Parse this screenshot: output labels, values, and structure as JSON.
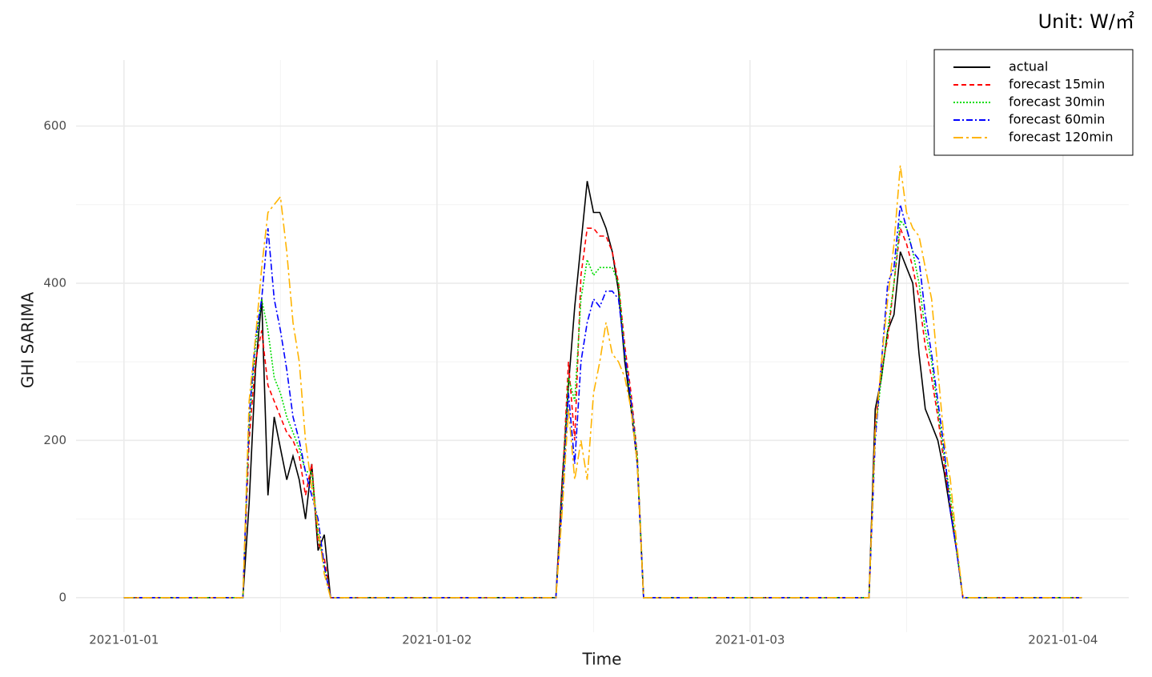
{
  "chart_data": {
    "type": "line",
    "unit_label": "Unit: W/㎡",
    "x_label": "Time",
    "y_label": "GHI SARIMA",
    "x": [
      0,
      0.38,
      0.4,
      0.42,
      0.44,
      0.46,
      0.48,
      0.5,
      0.52,
      0.54,
      0.56,
      0.58,
      0.6,
      0.62,
      0.64,
      0.66,
      0.68,
      1.38,
      1.4,
      1.42,
      1.44,
      1.46,
      1.48,
      1.5,
      1.52,
      1.54,
      1.56,
      1.58,
      1.6,
      1.62,
      1.64,
      1.66,
      1.68,
      2.38,
      2.4,
      2.42,
      2.44,
      2.46,
      2.48,
      2.5,
      2.52,
      2.54,
      2.56,
      2.58,
      2.6,
      2.62,
      2.64,
      2.66,
      2.68,
      3.06
    ],
    "series": [
      {
        "name": "actual",
        "color": "#000000",
        "dash": "none",
        "values": [
          0,
          0,
          120,
          290,
          380,
          130,
          230,
          190,
          150,
          180,
          150,
          100,
          170,
          60,
          80,
          0,
          0,
          0,
          150,
          270,
          370,
          450,
          530,
          490,
          490,
          470,
          440,
          390,
          300,
          240,
          170,
          0,
          0,
          0,
          240,
          280,
          340,
          360,
          440,
          420,
          400,
          310,
          240,
          220,
          200,
          160,
          110,
          60,
          0,
          0
        ]
      },
      {
        "name": "forecast 15min",
        "color": "#ff0000",
        "dash": "6,4",
        "values": [
          0,
          0,
          200,
          300,
          340,
          270,
          250,
          230,
          210,
          200,
          180,
          130,
          170,
          70,
          50,
          0,
          0,
          0,
          140,
          300,
          200,
          410,
          470,
          470,
          460,
          460,
          440,
          400,
          320,
          260,
          180,
          0,
          0,
          0,
          220,
          290,
          330,
          400,
          470,
          450,
          420,
          380,
          320,
          280,
          230,
          170,
          120,
          60,
          0,
          0
        ]
      },
      {
        "name": "forecast 30min",
        "color": "#00dd00",
        "dash": "2,2",
        "values": [
          0,
          0,
          220,
          320,
          380,
          340,
          280,
          260,
          230,
          210,
          190,
          160,
          160,
          80,
          40,
          0,
          0,
          0,
          130,
          280,
          250,
          380,
          430,
          410,
          420,
          420,
          420,
          400,
          310,
          250,
          180,
          0,
          0,
          0,
          210,
          280,
          340,
          400,
          480,
          470,
          440,
          400,
          340,
          300,
          240,
          180,
          130,
          60,
          0,
          0
        ]
      },
      {
        "name": "forecast 60min",
        "color": "#0000ff",
        "dash": "8,3,2,3",
        "values": [
          0,
          0,
          230,
          330,
          380,
          470,
          380,
          340,
          290,
          230,
          200,
          160,
          130,
          100,
          40,
          0,
          0,
          0,
          120,
          260,
          170,
          300,
          350,
          380,
          370,
          390,
          390,
          380,
          310,
          250,
          170,
          0,
          0,
          0,
          200,
          300,
          400,
          420,
          500,
          470,
          440,
          430,
          360,
          310,
          250,
          190,
          110,
          60,
          0,
          0
        ]
      },
      {
        "name": "forecast 120min",
        "color": "#ffb400",
        "dash": "12,4,3,4",
        "values": [
          0,
          0,
          250,
          330,
          420,
          490,
          500,
          510,
          440,
          350,
          300,
          200,
          140,
          90,
          30,
          0,
          0,
          0,
          110,
          240,
          150,
          200,
          150,
          260,
          300,
          350,
          310,
          300,
          280,
          240,
          170,
          0,
          0,
          0,
          210,
          300,
          380,
          450,
          550,
          490,
          470,
          460,
          420,
          380,
          290,
          200,
          150,
          70,
          0,
          0
        ]
      }
    ],
    "xlim": [
      -0.153,
      3.21
    ],
    "xticks": [
      {
        "value": 0,
        "label": "2021-01-01"
      },
      {
        "value": 1,
        "label": "2021-01-02"
      },
      {
        "value": 2,
        "label": "2021-01-03"
      },
      {
        "value": 3,
        "label": "2021-01-04"
      }
    ],
    "xticks_minor": [
      0.5,
      1.5,
      2.5
    ],
    "ylim": [
      -44,
      684
    ],
    "yticks": [
      0,
      200,
      400,
      600
    ],
    "yticks_minor": [
      100,
      300,
      500
    ],
    "grid": true,
    "legend": "top-right"
  }
}
